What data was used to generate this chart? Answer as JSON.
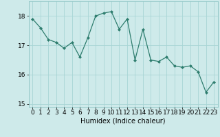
{
  "x": [
    0,
    1,
    2,
    3,
    4,
    5,
    6,
    7,
    8,
    9,
    10,
    11,
    12,
    13,
    14,
    15,
    16,
    17,
    18,
    19,
    20,
    21,
    22,
    23
  ],
  "y": [
    17.9,
    17.6,
    17.2,
    17.1,
    16.9,
    17.1,
    16.6,
    17.25,
    18.0,
    18.1,
    18.15,
    17.55,
    17.9,
    16.5,
    17.55,
    16.5,
    16.45,
    16.6,
    16.3,
    16.25,
    16.3,
    16.1,
    15.4,
    15.75
  ],
  "line_color": "#2e7d6e",
  "marker": "D",
  "marker_size": 2,
  "bg_color": "#ceeaea",
  "grid_color": "#a8d5d5",
  "xlabel": "Humidex (Indice chaleur)",
  "ylim": [
    14.9,
    18.5
  ],
  "xlim": [
    -0.5,
    23.5
  ],
  "yticks": [
    15,
    16,
    17,
    18
  ],
  "xticks": [
    0,
    1,
    2,
    3,
    4,
    5,
    6,
    7,
    8,
    9,
    10,
    11,
    12,
    13,
    14,
    15,
    16,
    17,
    18,
    19,
    20,
    21,
    22,
    23
  ],
  "xlabel_fontsize": 7,
  "tick_fontsize": 6.5
}
